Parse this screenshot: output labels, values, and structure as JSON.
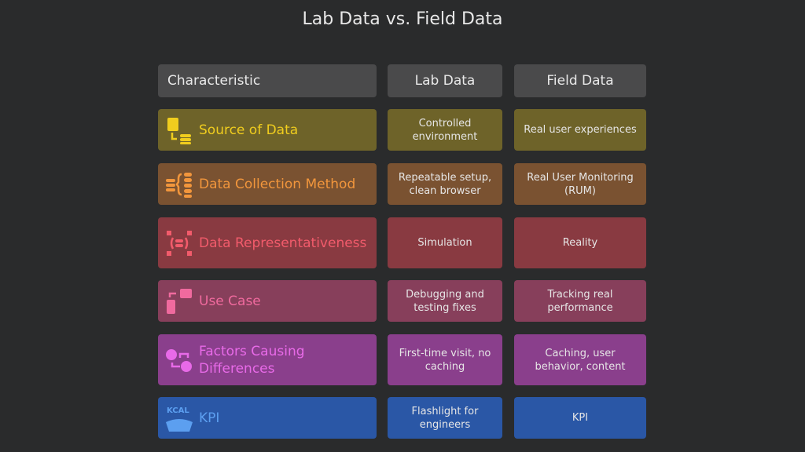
{
  "title": "Lab Data vs. Field Data",
  "headers": [
    "Characteristic",
    "Lab Data",
    "Field Data"
  ],
  "rows": [
    {
      "label": "Source of Data",
      "lab": "Controlled environment",
      "field": "Real user experiences",
      "icon": "file-to-database-icon",
      "bg": "#6e6329",
      "fg": "#f0cd1e"
    },
    {
      "label": "Data Collection Method",
      "lab": "Repeatable setup, clean browser",
      "field": "Real User Monitoring (RUM)",
      "icon": "database-collection-icon",
      "bg": "#7a5231",
      "fg": "#f2963c"
    },
    {
      "label": "Data Representativeness",
      "lab": "Simulation",
      "field": "Reality",
      "icon": "database-expand-icon",
      "bg": "#893a41",
      "fg": "#f25b6b"
    },
    {
      "label": "Use Case",
      "lab": "Debugging and testing fixes",
      "field": "Tracking real performance",
      "icon": "mobile-table-icon",
      "bg": "#873f5b",
      "fg": "#f06a9e"
    },
    {
      "label": "Factors Causing Differences",
      "lab": "First-time visit, no caching",
      "field": "Caching, user behavior, content",
      "icon": "exchange-icon",
      "bg": "#8a3f8c",
      "fg": "#e86ae8"
    },
    {
      "label": "KPI",
      "lab": "Flashlight for engineers",
      "field": "KPI",
      "icon": "kcal-scale-icon",
      "bg": "#2a57a6",
      "fg": "#5c9ff0"
    }
  ]
}
